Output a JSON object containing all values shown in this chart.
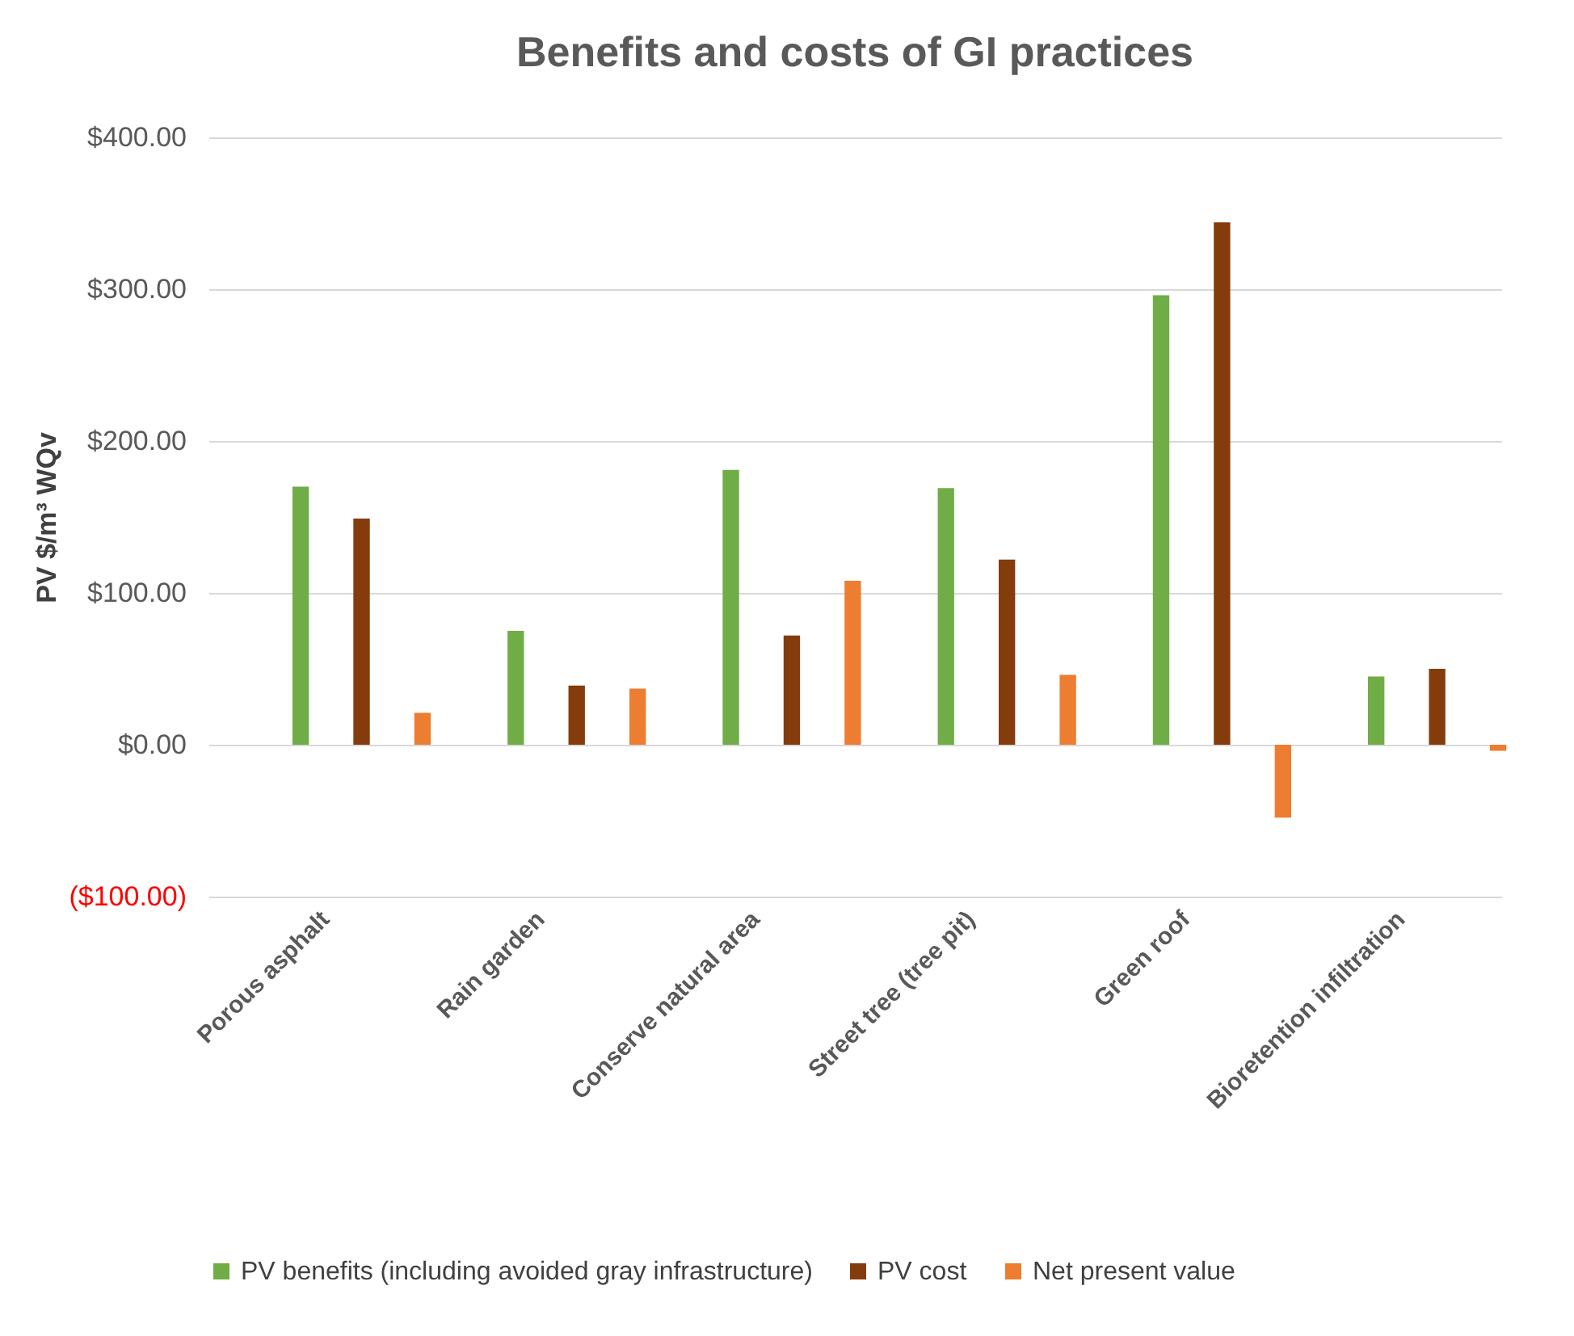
{
  "chart_data": {
    "type": "bar",
    "title": "Benefits and costs of GI practices",
    "ylabel": "PV $/m³ WQv",
    "categories": [
      "Porous asphalt",
      "Rain garden",
      "Conserve natural area",
      "Street tree (tree pit)",
      "Green roof",
      "Bioretention infiltration"
    ],
    "series": [
      {
        "name": "PV benefits (including avoided gray infrastructure)",
        "color": "#70ad47",
        "values": [
          170,
          75,
          181,
          169,
          296,
          45
        ]
      },
      {
        "name": "PV cost",
        "color": "#843c0c",
        "values": [
          149,
          39,
          72,
          122,
          344,
          50
        ]
      },
      {
        "name": "Net present value",
        "color": "#ed7d31",
        "values": [
          21,
          37,
          108,
          46,
          -48,
          -4
        ]
      }
    ],
    "ylim": [
      -100,
      400
    ],
    "yticks": [
      {
        "value": -100,
        "label": "($100.00)"
      },
      {
        "value": 0,
        "label": "$0.00"
      },
      {
        "value": 100,
        "label": "$100.00"
      },
      {
        "value": 200,
        "label": "$200.00"
      },
      {
        "value": 300,
        "label": "$300.00"
      },
      {
        "value": 400,
        "label": "$400.00"
      }
    ],
    "grid": "y",
    "legend": "bottom"
  }
}
